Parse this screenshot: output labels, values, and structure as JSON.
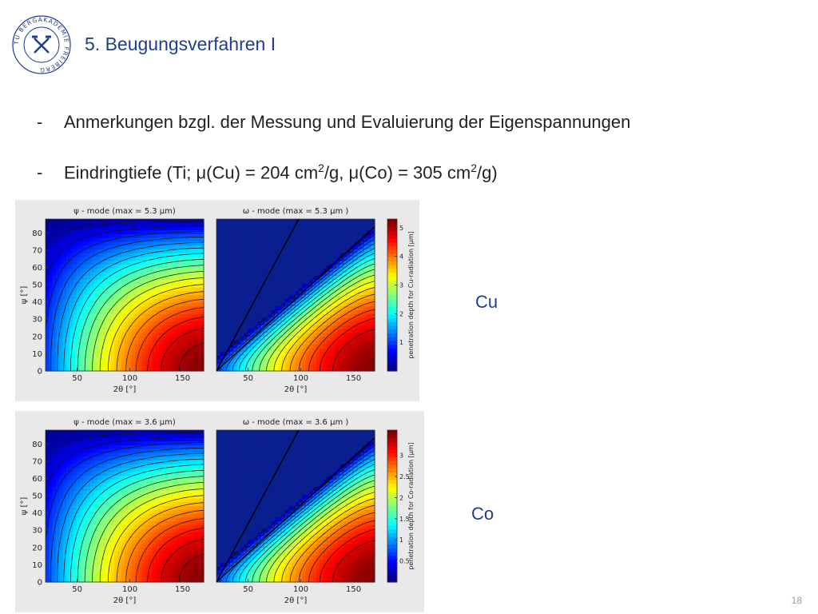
{
  "header": {
    "title": "5. Beugungsverfahren I",
    "logo_text": "TU BERGAKADEMIE FREIBERG"
  },
  "bullets": [
    {
      "dash": "-",
      "text": "Anmerkungen bzgl. der Messung und Evaluierung der Eigenspannungen"
    },
    {
      "dash": "-",
      "text_parts": [
        "Eindringtiefe (Ti; μ(Cu) = 204 cm",
        "2",
        "/g, μ(Co) = 305 cm",
        "2",
        "/g)"
      ]
    }
  ],
  "figures": [
    {
      "id": "cu",
      "side_label": "Cu",
      "left_title": "ψ - mode (max = 5.3 μm)",
      "right_title": "ω - mode (max = 5.3 μm )",
      "xlabel": "2θ [°]",
      "ylabel": "ψ [°]",
      "x_ticks": [
        "50",
        "100",
        "150"
      ],
      "y_ticks": [
        "0",
        "10",
        "20",
        "30",
        "40",
        "50",
        "60",
        "70",
        "80"
      ],
      "colorbar_ticks": [
        "1",
        "2",
        "3",
        "4",
        "5"
      ],
      "colorbar_label": "penetration depth for Cu-radiation [μm]",
      "max": 5.3
    },
    {
      "id": "co",
      "side_label": "Co",
      "left_title": "ψ - mode (max = 3.6 μm)",
      "right_title": "ω - mode (max = 3.6 μm )",
      "xlabel": "2θ [°]",
      "ylabel": "ψ [°]",
      "x_ticks": [
        "50",
        "100",
        "150"
      ],
      "y_ticks": [
        "0",
        "10",
        "20",
        "30",
        "40",
        "50",
        "60",
        "70",
        "80"
      ],
      "colorbar_ticks": [
        "0.5",
        "1",
        "1.5",
        "2",
        "2.5",
        "3"
      ],
      "colorbar_label": "penetration depth for Co-radiation [μm]",
      "max": 3.6
    }
  ],
  "page_number": "18",
  "colors": {
    "title": "#1f3f8c",
    "background_low": "#08208f",
    "background_high": "#8a0a0a"
  }
}
